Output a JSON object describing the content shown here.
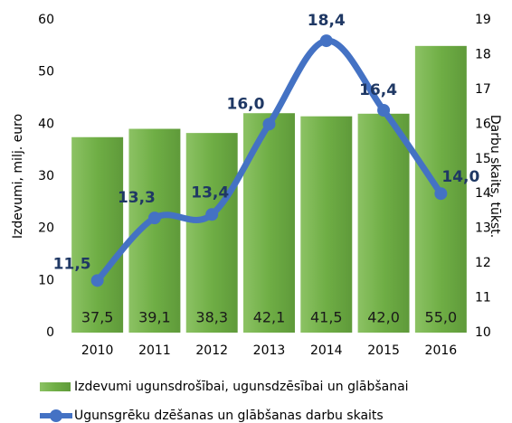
{
  "chart_data": {
    "type": "bar_line",
    "categories": [
      "2010",
      "2011",
      "2012",
      "2013",
      "2014",
      "2015",
      "2016"
    ],
    "ylabel": "Izdevumi, milj. euro",
    "y2label": "Darbu skaits, tūkst.",
    "ylim": [
      0,
      60
    ],
    "yticks": [
      0,
      10,
      20,
      30,
      40,
      50,
      60
    ],
    "y2lim": [
      10,
      19
    ],
    "y2ticks": [
      10,
      11,
      12,
      13,
      14,
      15,
      16,
      17,
      18,
      19
    ],
    "legend": "bottom",
    "series": [
      {
        "name": "Izdevumi ugunsdrošībai, ugunsdzēsībai un glābšanai",
        "type": "bar",
        "color": "#70ad47",
        "values": [
          37.5,
          39.1,
          38.3,
          42.1,
          41.5,
          42.0,
          55.0
        ],
        "value_labels": [
          "37,5",
          "39,1",
          "38,3",
          "42,1",
          "41,5",
          "42,0",
          "55,0"
        ]
      },
      {
        "name": "Ugunsgrēku dzēšanas un glābšanas darbu skaits",
        "type": "line",
        "axis": "y2",
        "color": "#4472c4",
        "values": [
          11.5,
          13.3,
          13.4,
          16.0,
          18.4,
          16.4,
          14.0
        ],
        "value_labels": [
          "11,5",
          "13,3",
          "13,4",
          "16,0",
          "18,4",
          "16,4",
          "14,0"
        ]
      }
    ]
  }
}
